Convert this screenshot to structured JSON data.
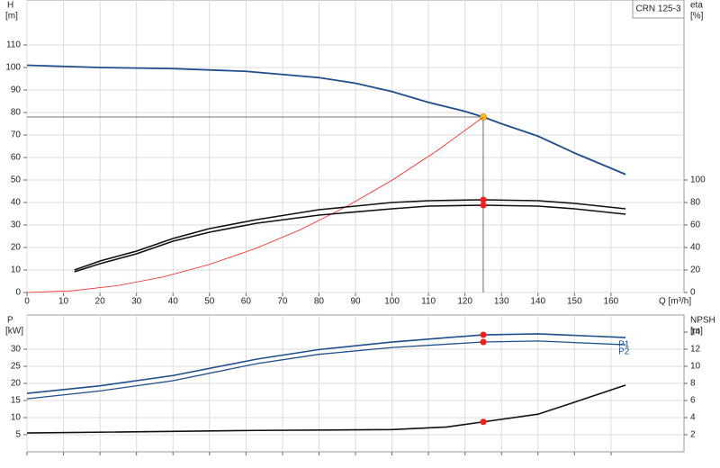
{
  "chart_data": [
    {
      "type": "line",
      "title": "CRN 125-3",
      "x_label": "Q [m³/h]",
      "y_label": "H",
      "y_unit": "[m]",
      "y2_label": "eta",
      "y2_unit": "[%]",
      "xlim": [
        0,
        180
      ],
      "xticks": [
        0,
        10,
        20,
        30,
        40,
        50,
        60,
        70,
        80,
        90,
        100,
        110,
        120,
        130,
        140,
        150,
        160
      ],
      "ylim": [
        0,
        130
      ],
      "yticks": [
        0,
        10,
        20,
        30,
        40,
        50,
        60,
        70,
        80,
        90,
        100,
        110
      ],
      "y2lim": [
        0,
        260
      ],
      "y2ticks": [
        0,
        20,
        40,
        60,
        80,
        100
      ],
      "grid": true,
      "x_tick_labels": true,
      "marker_x": 125,
      "series": [
        {
          "color": "#1f4e8c",
          "width": 1.8,
          "marker_color": "#ffc61a",
          "crosshair": true,
          "x": [
            0,
            20,
            40,
            60,
            80,
            90,
            100,
            110,
            120,
            125,
            130,
            140,
            150,
            164
          ],
          "values": [
            101,
            100,
            99.5,
            98.3,
            95.5,
            93,
            89.3,
            84.5,
            80.5,
            78,
            75,
            69.5,
            62,
            52.5
          ]
        },
        {
          "color": "#ff2020",
          "width": 0.8,
          "x": [
            0,
            12.5,
            25,
            37.5,
            50,
            62.5,
            75,
            87.5,
            100,
            112.5,
            125
          ],
          "values": [
            0,
            0.78,
            3.1,
            7,
            12.5,
            19.5,
            28,
            38.2,
            49.9,
            63.2,
            78
          ]
        },
        {
          "color": "#111111",
          "width": 1.6,
          "axis": "y2",
          "marker_color": "#ff1a1a",
          "x": [
            13,
            20,
            30,
            40,
            50,
            63,
            80,
            100,
            110,
            125,
            140,
            150,
            164
          ],
          "values": [
            20,
            28,
            36.8,
            48,
            56.8,
            64.8,
            73.6,
            80,
            81.6,
            82.4,
            81.6,
            79.2,
            74.4
          ]
        },
        {
          "color": "#111111",
          "width": 1.6,
          "axis": "y2",
          "marker_color": "#ff1a1a",
          "x": [
            13,
            20,
            30,
            40,
            50,
            63,
            80,
            100,
            110,
            125,
            140,
            150,
            164
          ],
          "values": [
            18.4,
            25.6,
            34.4,
            45.6,
            53.6,
            61.6,
            68.8,
            74.4,
            76.8,
            77.6,
            76.8,
            74.4,
            69.6
          ]
        }
      ]
    },
    {
      "type": "line",
      "y_label": "P",
      "y_unit": "[kW]",
      "y2_label": "NPSH",
      "y2_unit": "[m]",
      "xlim": [
        0,
        180
      ],
      "xticks": [
        0,
        10,
        20,
        30,
        40,
        50,
        60,
        70,
        80,
        90,
        100,
        110,
        120,
        130,
        140,
        150,
        160
      ],
      "ylim": [
        0,
        40
      ],
      "yticks": [
        5,
        10,
        15,
        20,
        25,
        30
      ],
      "y2lim": [
        0,
        16
      ],
      "y2ticks": [
        2,
        4,
        6,
        8,
        10,
        12,
        14
      ],
      "grid": true,
      "x_tick_labels": false,
      "marker_x": 125,
      "series": [
        {
          "name": "P1",
          "color": "#1f4e8c",
          "width": 1.6,
          "marker_color": "#ff1a1a",
          "x": [
            0,
            20,
            40,
            63,
            80,
            100,
            125,
            140,
            164
          ],
          "values": [
            17.1,
            19.3,
            22.3,
            27.1,
            29.9,
            32.1,
            34.2,
            34.5,
            33.4
          ]
        },
        {
          "name": "P2",
          "color": "#1f4e8c",
          "width": 1.3,
          "marker_color": "#ff1a1a",
          "x": [
            0,
            20,
            40,
            63,
            80,
            100,
            125,
            140,
            164
          ],
          "values": [
            15.5,
            17.8,
            20.8,
            25.8,
            28.5,
            30.5,
            32.1,
            32.4,
            31.3
          ]
        },
        {
          "color": "#111111",
          "width": 1.6,
          "axis": "y2",
          "marker_color": "#ff1a1a",
          "x": [
            0,
            63,
            100,
            115,
            125,
            140,
            150,
            164
          ],
          "values": [
            2.2,
            2.5,
            2.6,
            2.9,
            3.5,
            4.4,
            5.8,
            7.8
          ]
        }
      ]
    }
  ]
}
